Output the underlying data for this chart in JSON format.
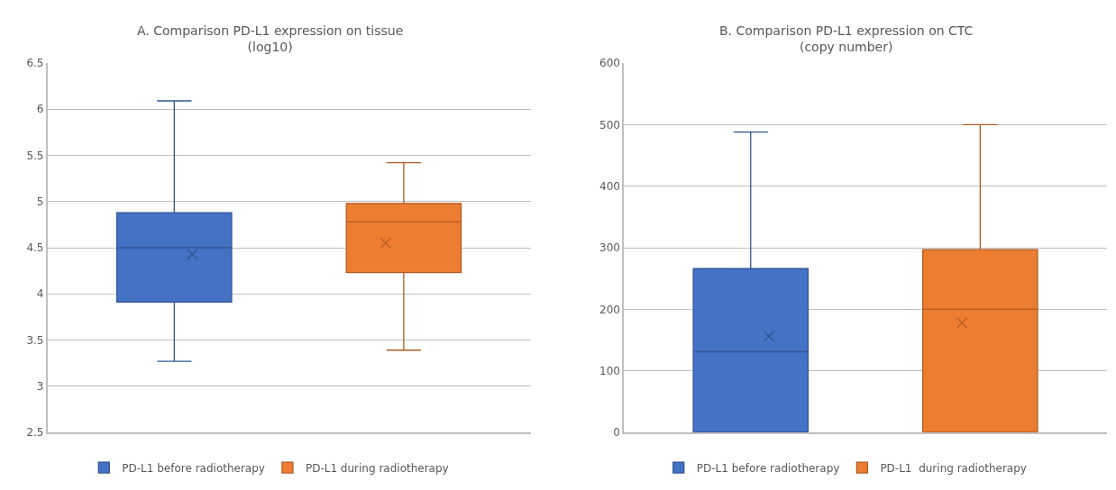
{
  "chart_data": [
    {
      "type": "box",
      "title": "A. Comparison PD-L1 expression on tissue",
      "subtitle": "(log10)",
      "categories": [
        null
      ],
      "ylim": [
        2.5,
        6.5
      ],
      "yticks": [
        2.5,
        3,
        3.5,
        4,
        4.5,
        5,
        5.5,
        6,
        6.5
      ],
      "grid": "y",
      "legend": "bottom",
      "marker": "cross",
      "series": [
        {
          "name": "PD-L1 before radiotherapy",
          "color": "#4472c4",
          "boxes": [
            {
              "low": 3.27,
              "q1": 3.91,
              "median": 4.5,
              "q3": 4.88,
              "high": 6.09,
              "mean": 4.43
            }
          ]
        },
        {
          "name": "PD-L1 during radiotherapy",
          "color": "#ed7d31",
          "boxes": [
            {
              "low": 3.39,
              "q1": 4.23,
              "median": 4.78,
              "q3": 4.98,
              "high": 5.42,
              "mean": 4.55
            }
          ]
        }
      ]
    },
    {
      "type": "box",
      "title": "B. Comparison PD-L1 expression on CTC",
      "subtitle": "(copy number)",
      "categories": [
        null
      ],
      "ylim": [
        0,
        600
      ],
      "yticks": [
        0,
        100,
        200,
        300,
        400,
        500,
        600
      ],
      "grid": "y",
      "legend": "bottom",
      "marker": "cross",
      "series": [
        {
          "name": "PD-L1 before radiotherapy",
          "color": "#4472c4",
          "boxes": [
            {
              "low": 0,
              "q1": 0,
              "median": 131,
              "q3": 266,
              "high": 488,
              "mean": 156
            }
          ]
        },
        {
          "name": "PD-L1  during radiotherapy",
          "color": "#ed7d31",
          "boxes": [
            {
              "low": 0,
              "q1": 0,
              "median": 200,
              "q3": 297,
              "high": 500,
              "mean": 178
            }
          ]
        }
      ]
    }
  ]
}
